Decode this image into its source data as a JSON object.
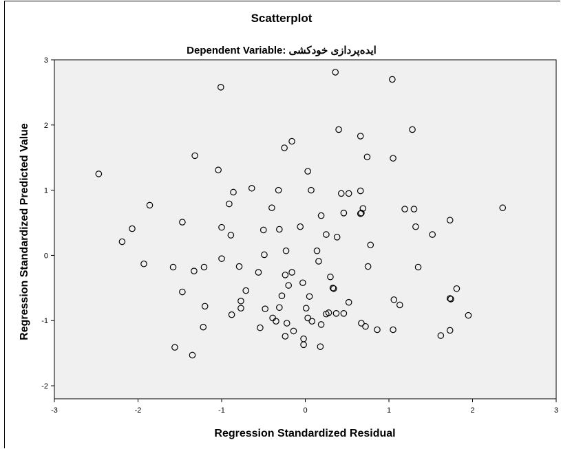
{
  "chart_data": {
    "type": "scatter",
    "title": "Scatterplot",
    "subtitle": "Dependent Variable: ایده‌پردازی خودکشی",
    "xlabel": "Regression Standardized Residual",
    "ylabel": "Regression Standardized Predicted Value",
    "xlim": [
      -3.0,
      3.0
    ],
    "ylim": [
      -2.2,
      3.0
    ],
    "xticks": [
      -3,
      -2,
      -1,
      0,
      1,
      2,
      3
    ],
    "yticks": [
      -2,
      -1,
      0,
      1,
      2,
      3
    ],
    "grid": false,
    "plot_background": "#f0f0f0",
    "marker": "open-circle",
    "points": [
      {
        "x": -2.47,
        "y": 1.25
      },
      {
        "x": -2.19,
        "y": 0.21
      },
      {
        "x": -2.07,
        "y": 0.41
      },
      {
        "x": -1.93,
        "y": -0.13
      },
      {
        "x": -1.86,
        "y": 0.77
      },
      {
        "x": -1.58,
        "y": -0.18
      },
      {
        "x": -1.56,
        "y": -1.41
      },
      {
        "x": -1.47,
        "y": 0.51
      },
      {
        "x": -1.47,
        "y": -0.56
      },
      {
        "x": -1.35,
        "y": -1.53
      },
      {
        "x": -1.33,
        "y": -0.24
      },
      {
        "x": -1.32,
        "y": 1.53
      },
      {
        "x": -1.21,
        "y": -0.18
      },
      {
        "x": -1.2,
        "y": -0.78
      },
      {
        "x": -1.22,
        "y": -1.1
      },
      {
        "x": -1.04,
        "y": 1.31
      },
      {
        "x": -1.01,
        "y": 2.58
      },
      {
        "x": -1.0,
        "y": 0.43
      },
      {
        "x": -1.0,
        "y": -0.05
      },
      {
        "x": -0.91,
        "y": 0.79
      },
      {
        "x": -0.89,
        "y": 0.31
      },
      {
        "x": -0.88,
        "y": -0.91
      },
      {
        "x": -0.86,
        "y": 0.97
      },
      {
        "x": -0.79,
        "y": -0.17
      },
      {
        "x": -0.77,
        "y": -0.7
      },
      {
        "x": -0.77,
        "y": -0.81
      },
      {
        "x": -0.71,
        "y": -0.54
      },
      {
        "x": -0.64,
        "y": 1.03
      },
      {
        "x": -0.56,
        "y": -0.26
      },
      {
        "x": -0.54,
        "y": -1.11
      },
      {
        "x": -0.5,
        "y": 0.39
      },
      {
        "x": -0.49,
        "y": 0.01
      },
      {
        "x": -0.48,
        "y": -0.82
      },
      {
        "x": -0.4,
        "y": 0.73
      },
      {
        "x": -0.39,
        "y": -0.96
      },
      {
        "x": -0.35,
        "y": -1.01
      },
      {
        "x": -0.32,
        "y": 1.0
      },
      {
        "x": -0.31,
        "y": 0.4
      },
      {
        "x": -0.31,
        "y": -0.8
      },
      {
        "x": -0.28,
        "y": -0.62
      },
      {
        "x": -0.25,
        "y": 1.65
      },
      {
        "x": -0.23,
        "y": 0.07
      },
      {
        "x": -0.24,
        "y": -0.3
      },
      {
        "x": -0.24,
        "y": -1.24
      },
      {
        "x": -0.22,
        "y": -1.04
      },
      {
        "x": -0.2,
        "y": -0.46
      },
      {
        "x": -0.16,
        "y": 1.75
      },
      {
        "x": -0.16,
        "y": -0.26
      },
      {
        "x": -0.14,
        "y": -1.16
      },
      {
        "x": -0.06,
        "y": 0.44
      },
      {
        "x": -0.03,
        "y": -0.42
      },
      {
        "x": -0.02,
        "y": -1.28
      },
      {
        "x": -0.02,
        "y": -1.37
      },
      {
        "x": 0.01,
        "y": -0.81
      },
      {
        "x": 0.03,
        "y": 1.29
      },
      {
        "x": 0.03,
        "y": -0.96
      },
      {
        "x": 0.05,
        "y": -0.63
      },
      {
        "x": 0.07,
        "y": 1.0
      },
      {
        "x": 0.08,
        "y": -1.01
      },
      {
        "x": 0.14,
        "y": 0.07
      },
      {
        "x": 0.16,
        "y": -0.09
      },
      {
        "x": 0.18,
        "y": -1.4
      },
      {
        "x": 0.19,
        "y": 0.61
      },
      {
        "x": 0.19,
        "y": -1.06
      },
      {
        "x": 0.25,
        "y": 0.32
      },
      {
        "x": 0.25,
        "y": -0.9
      },
      {
        "x": 0.28,
        "y": -0.88
      },
      {
        "x": 0.3,
        "y": -0.33
      },
      {
        "x": 0.33,
        "y": -0.5
      },
      {
        "x": 0.34,
        "y": -0.51
      },
      {
        "x": 0.36,
        "y": 2.81
      },
      {
        "x": 0.38,
        "y": 0.28
      },
      {
        "x": 0.37,
        "y": -0.89
      },
      {
        "x": 0.4,
        "y": 1.93
      },
      {
        "x": 0.43,
        "y": 0.95
      },
      {
        "x": 0.46,
        "y": 0.65
      },
      {
        "x": 0.46,
        "y": -0.89
      },
      {
        "x": 0.52,
        "y": 0.95
      },
      {
        "x": 0.52,
        "y": -0.72
      },
      {
        "x": 0.66,
        "y": 1.83
      },
      {
        "x": 0.66,
        "y": 0.99
      },
      {
        "x": 0.66,
        "y": 0.64
      },
      {
        "x": 0.67,
        "y": 0.65
      },
      {
        "x": 0.69,
        "y": 0.72
      },
      {
        "x": 0.67,
        "y": -1.04
      },
      {
        "x": 0.72,
        "y": -1.09
      },
      {
        "x": 0.74,
        "y": 1.51
      },
      {
        "x": 0.75,
        "y": -0.17
      },
      {
        "x": 0.78,
        "y": 0.16
      },
      {
        "x": 0.86,
        "y": -1.14
      },
      {
        "x": 1.04,
        "y": 2.7
      },
      {
        "x": 1.05,
        "y": 1.49
      },
      {
        "x": 1.06,
        "y": -0.68
      },
      {
        "x": 1.05,
        "y": -1.14
      },
      {
        "x": 1.13,
        "y": -0.76
      },
      {
        "x": 1.19,
        "y": 0.71
      },
      {
        "x": 1.28,
        "y": 1.93
      },
      {
        "x": 1.3,
        "y": 0.71
      },
      {
        "x": 1.32,
        "y": 0.44
      },
      {
        "x": 1.35,
        "y": -0.18
      },
      {
        "x": 1.52,
        "y": 0.32
      },
      {
        "x": 1.62,
        "y": -1.23
      },
      {
        "x": 1.73,
        "y": 0.54
      },
      {
        "x": 1.73,
        "y": -0.66
      },
      {
        "x": 1.74,
        "y": -0.67
      },
      {
        "x": 1.73,
        "y": -1.15
      },
      {
        "x": 1.81,
        "y": -0.51
      },
      {
        "x": 1.95,
        "y": -0.92
      },
      {
        "x": 2.36,
        "y": 0.73
      }
    ]
  }
}
